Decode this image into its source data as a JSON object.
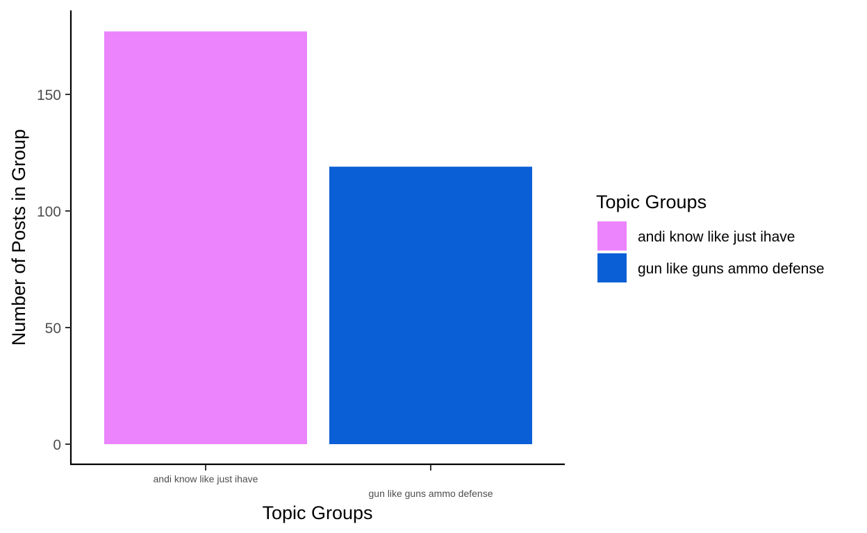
{
  "chart_data": {
    "type": "bar",
    "categories": [
      "andi know like just ihave",
      "gun like guns ammo defense"
    ],
    "values": [
      177,
      119
    ],
    "colors": [
      "#EB84FD",
      "#0B5FD6"
    ],
    "xlabel": "Topic Groups",
    "ylabel": "Number of Posts in Group",
    "ylim": [
      0,
      190
    ],
    "yticks": [
      0,
      50,
      100,
      150
    ],
    "grid": false,
    "legend": {
      "title": "Topic Groups",
      "placement": "right",
      "entries": [
        "andi know like just ihave",
        "gun like guns ammo defense"
      ]
    }
  }
}
